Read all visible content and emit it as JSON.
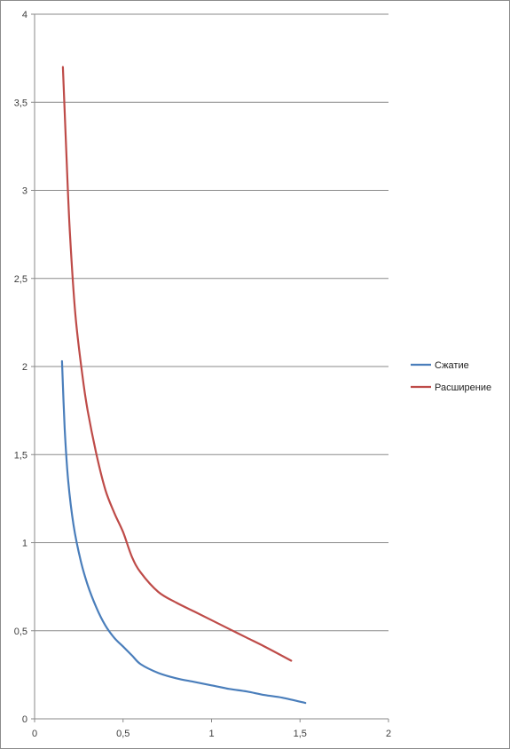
{
  "chart_data": {
    "type": "line",
    "title": "",
    "xlabel": "",
    "ylabel": "",
    "xlim": [
      0,
      2
    ],
    "ylim": [
      0,
      4
    ],
    "x_ticks": [
      "0",
      "0,5",
      "1",
      "1,5",
      "2"
    ],
    "y_ticks": [
      "0",
      "0,5",
      "1",
      "1,5",
      "2",
      "2,5",
      "3",
      "3,5",
      "4"
    ],
    "grid": "horizontal",
    "legend_position": "right",
    "series": [
      {
        "name": "Сжатие",
        "color": "#4a7ebb",
        "points": [
          [
            0.155,
            2.03
          ],
          [
            0.17,
            1.65
          ],
          [
            0.19,
            1.35
          ],
          [
            0.22,
            1.1
          ],
          [
            0.26,
            0.9
          ],
          [
            0.3,
            0.76
          ],
          [
            0.35,
            0.63
          ],
          [
            0.4,
            0.53
          ],
          [
            0.45,
            0.46
          ],
          [
            0.5,
            0.41
          ],
          [
            0.55,
            0.36
          ],
          [
            0.6,
            0.31
          ],
          [
            0.7,
            0.26
          ],
          [
            0.8,
            0.23
          ],
          [
            0.9,
            0.21
          ],
          [
            1.0,
            0.19
          ],
          [
            1.1,
            0.17
          ],
          [
            1.2,
            0.155
          ],
          [
            1.3,
            0.135
          ],
          [
            1.4,
            0.12
          ],
          [
            1.53,
            0.09
          ]
        ]
      },
      {
        "name": "Расширение",
        "color": "#be4b48",
        "points": [
          [
            0.16,
            3.7
          ],
          [
            0.18,
            3.2
          ],
          [
            0.2,
            2.75
          ],
          [
            0.23,
            2.3
          ],
          [
            0.27,
            1.95
          ],
          [
            0.3,
            1.75
          ],
          [
            0.35,
            1.5
          ],
          [
            0.4,
            1.3
          ],
          [
            0.45,
            1.17
          ],
          [
            0.5,
            1.06
          ],
          [
            0.55,
            0.92
          ],
          [
            0.6,
            0.83
          ],
          [
            0.7,
            0.72
          ],
          [
            0.8,
            0.66
          ],
          [
            0.9,
            0.61
          ],
          [
            1.0,
            0.56
          ],
          [
            1.1,
            0.51
          ],
          [
            1.2,
            0.46
          ],
          [
            1.3,
            0.41
          ],
          [
            1.45,
            0.33
          ]
        ]
      }
    ]
  }
}
